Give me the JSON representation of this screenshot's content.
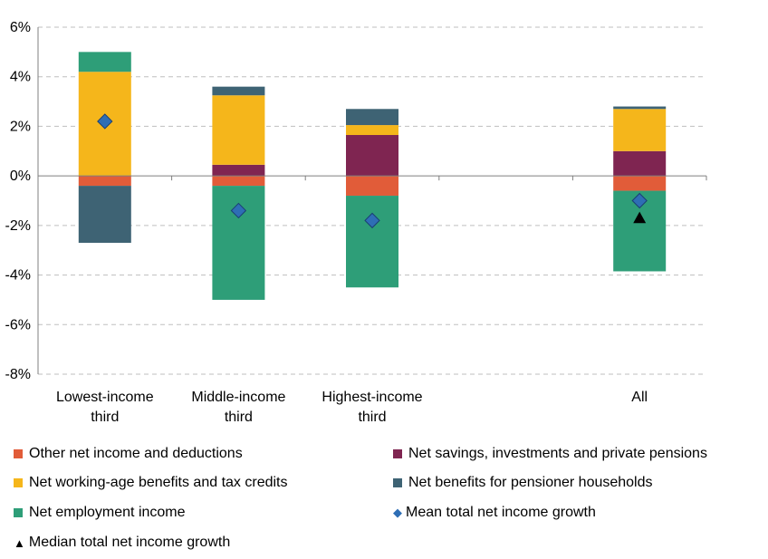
{
  "chart_data": {
    "type": "bar",
    "stacked": true,
    "categories": [
      [
        "Lowest-income",
        "third"
      ],
      [
        "Middle-income",
        "third"
      ],
      [
        "Highest-income",
        "third"
      ],
      [
        ""
      ],
      [
        "All"
      ]
    ],
    "ylim": [
      -8,
      6
    ],
    "yticks": [
      -8,
      -6,
      -4,
      -2,
      0,
      2,
      4,
      6
    ],
    "ytick_labels": [
      "-8%",
      "-6%",
      "-4%",
      "-2%",
      "0%",
      "2%",
      "4%",
      "6%"
    ],
    "grid": true,
    "legend_position": "bottom",
    "series": [
      {
        "name": "Other net income and deductions",
        "color": "#e15c39",
        "values": [
          -0.4,
          -0.4,
          -0.8,
          null,
          -0.6
        ]
      },
      {
        "name": "Net savings, investments and private pensions",
        "color": "#7f2551",
        "values": [
          0,
          0.45,
          1.65,
          null,
          1.0
        ]
      },
      {
        "name": "Net working-age benefits and tax credits",
        "color": "#f5b61b",
        "values": [
          4.2,
          2.8,
          0.4,
          null,
          1.7
        ]
      },
      {
        "name": "Net benefits for pensioner households",
        "color": "#3e6374",
        "values": [
          -2.3,
          0.35,
          0.65,
          null,
          0.1
        ]
      },
      {
        "name": "Net employment income",
        "color": "#2e9e78",
        "values": [
          0.8,
          -4.6,
          -3.7,
          null,
          -3.25
        ]
      }
    ],
    "markers": [
      {
        "name": "Mean total net income growth",
        "shape": "diamond",
        "color": "#2e6eb5",
        "values": [
          2.2,
          -1.4,
          -1.8,
          null,
          -1.0
        ]
      },
      {
        "name": "Median total net income growth",
        "shape": "triangle",
        "color": "#000000",
        "values": [
          null,
          null,
          null,
          null,
          -1.7
        ]
      }
    ]
  },
  "legend": {
    "items": [
      {
        "label": "Other net income and deductions",
        "type": "square",
        "color": "#e15c39"
      },
      {
        "label": "Net savings, investments and private pensions",
        "type": "square",
        "color": "#7f2551"
      },
      {
        "label": "Net working-age benefits and tax credits",
        "type": "square",
        "color": "#f5b61b"
      },
      {
        "label": "Net benefits for pensioner households",
        "type": "square",
        "color": "#3e6374"
      },
      {
        "label": "Net employment income",
        "type": "square",
        "color": "#2e9e78"
      },
      {
        "label": "Mean total net income growth",
        "type": "diamond",
        "color": "#2e6eb5"
      },
      {
        "label": "Median total net income growth",
        "type": "triangle",
        "color": "#000000"
      }
    ]
  }
}
